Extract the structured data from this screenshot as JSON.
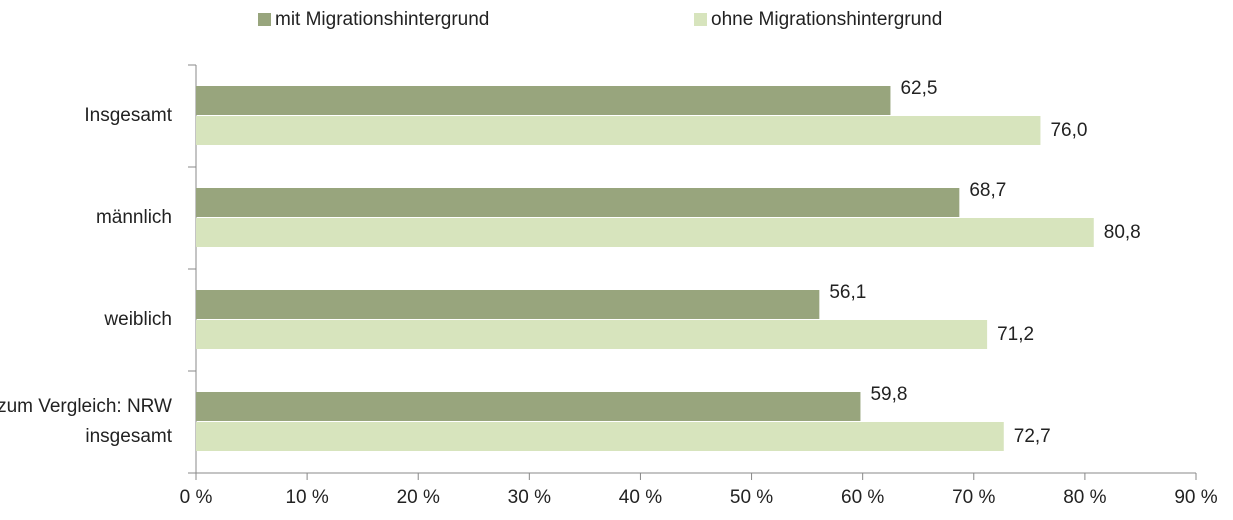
{
  "chart_data": {
    "type": "bar",
    "orientation": "horizontal",
    "categories": [
      "Insgesamt",
      "männlich",
      "weiblich",
      "zum Vergleich: NRW insgesamt"
    ],
    "series": [
      {
        "name": "mit Migrationshintergrund",
        "color": "#98a57d",
        "values": [
          62.5,
          68.7,
          56.1,
          59.8
        ],
        "value_labels": [
          "62,5",
          "68,7",
          "56,1",
          "59,8"
        ]
      },
      {
        "name": "ohne Migrationshintergrund",
        "color": "#d7e4bd",
        "values": [
          76.0,
          80.8,
          71.2,
          72.7
        ],
        "value_labels": [
          "76,0",
          "80,8",
          "71,2",
          "72,7"
        ]
      }
    ],
    "xlim": [
      0,
      90
    ],
    "xticks": [
      {
        "value": 0,
        "label": "0 %"
      },
      {
        "value": 10,
        "label": "10 %"
      },
      {
        "value": 20,
        "label": "20 %"
      },
      {
        "value": 30,
        "label": "30 %"
      },
      {
        "value": 40,
        "label": "40 %"
      },
      {
        "value": 50,
        "label": "50 %"
      },
      {
        "value": 60,
        "label": "60 %"
      },
      {
        "value": 70,
        "label": "70 %"
      },
      {
        "value": 80,
        "label": "80 %"
      },
      {
        "value": 90,
        "label": "90 %"
      }
    ],
    "legend": "top"
  }
}
